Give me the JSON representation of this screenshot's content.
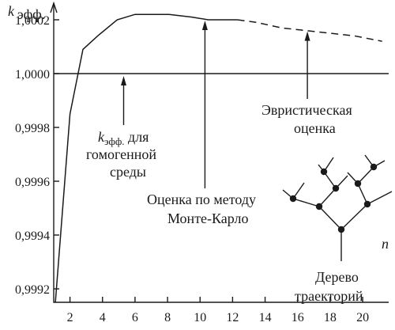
{
  "chart_data": {
    "type": "line",
    "ylabel_main": "k",
    "ylabel_sub": "эфф.",
    "xlabel": "n",
    "xlim": [
      1,
      21.6
    ],
    "ylim": [
      0.99915,
      1.00025
    ],
    "x_ticks": [
      2,
      4,
      6,
      8,
      10,
      12,
      14,
      16,
      18,
      20
    ],
    "x_tick_labels": [
      "2",
      "4",
      "6",
      "8",
      "10",
      "12",
      "14",
      "16",
      "18",
      "20"
    ],
    "y_ticks": [
      0.9992,
      0.9994,
      0.9996,
      0.9998,
      1.0,
      1.0002
    ],
    "y_tick_labels": [
      "0,9992",
      "0,9994",
      "0,9996",
      "0,9998",
      "1,0000",
      "1,0002"
    ],
    "reference_value": 1.0,
    "series": [
      {
        "style": "solid",
        "x": [
          1.1,
          2.0,
          2.8,
          3.7,
          4.9,
          6.0,
          7.0,
          8.1,
          9.5,
          10.5,
          11.3,
          12.3
        ],
        "y": [
          0.99915,
          0.99985,
          1.00009,
          1.00014,
          1.0002,
          1.00022,
          1.00022,
          1.00022,
          1.00021,
          1.0002,
          1.0002,
          1.0002
        ]
      },
      {
        "style": "dashed",
        "x": [
          12.3,
          13.5,
          15.0,
          16.5,
          18.0,
          19.5,
          21.2
        ],
        "y": [
          1.0002,
          1.00019,
          1.00017,
          1.00016,
          1.00015,
          1.00014,
          1.00012
        ]
      }
    ],
    "annotations": [
      {
        "lines_main": [
          "k",
          " для"
        ],
        "sub": "эфф.",
        "extra": [
          "гомогенной",
          "среды"
        ],
        "target_x": 5.3,
        "target_y": 1.0
      },
      {
        "lines": [
          "Оценка по методу",
          "Монте-Карло"
        ],
        "target_x": 10.3,
        "target_y": 1.0002
      },
      {
        "lines": [
          "Эвристическая",
          "оценка"
        ],
        "target_x": 16.6,
        "target_y": 1.00016
      },
      {
        "lines": [
          "Дерево",
          "траекторий"
        ]
      }
    ]
  }
}
